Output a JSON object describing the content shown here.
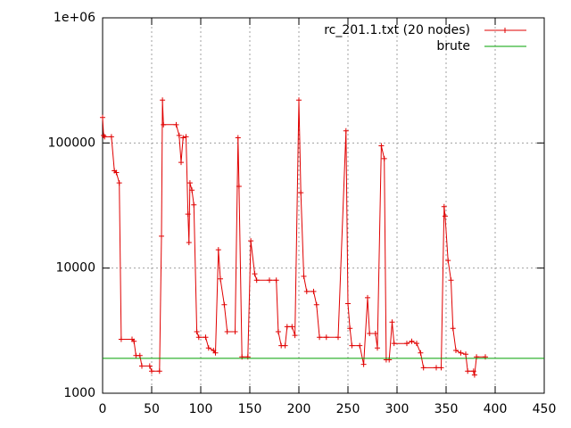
{
  "chart_data": {
    "type": "line",
    "log_y": true,
    "grid": true,
    "legend": "top-right",
    "xlim": [
      0,
      450
    ],
    "xticks": [
      0,
      50,
      100,
      150,
      200,
      250,
      300,
      350,
      400,
      450
    ],
    "ylim": [
      1000,
      1000000
    ],
    "yticks": [
      1000,
      10000,
      100000,
      {
        "value": 1000000,
        "label": "1e+06"
      }
    ],
    "series": [
      {
        "name": "rc_201.1.txt (20 nodes)",
        "color": "#e00000",
        "markers": true,
        "x": [
          0,
          1,
          2,
          9,
          12,
          14,
          17,
          19,
          30,
          32,
          34,
          38,
          40,
          48,
          50,
          58,
          60,
          61,
          62,
          75,
          78,
          80,
          82,
          85,
          87,
          88,
          89,
          91,
          93,
          96,
          98,
          105,
          108,
          113,
          115,
          118,
          120,
          124,
          127,
          135,
          138,
          139,
          142,
          148,
          151,
          155,
          157,
          170,
          177,
          179,
          182,
          186,
          188,
          193,
          196,
          200,
          202,
          205,
          208,
          215,
          218,
          221,
          228,
          240,
          248,
          250,
          252,
          254,
          262,
          266,
          270,
          272,
          278,
          280,
          284,
          287,
          289,
          292,
          295,
          297,
          310,
          315,
          320,
          324,
          327,
          340,
          345,
          348,
          349,
          352,
          355,
          357,
          360,
          365,
          370,
          372,
          378,
          379,
          381,
          390
        ],
        "values": [
          160000,
          115000,
          112000,
          112000,
          60000,
          58000,
          48000,
          2700,
          2700,
          2600,
          2000,
          2000,
          1650,
          1650,
          1500,
          1500,
          18000,
          220000,
          140000,
          140000,
          115000,
          70000,
          110000,
          112000,
          27000,
          16000,
          48000,
          42000,
          32000,
          3100,
          2800,
          2800,
          2300,
          2200,
          2100,
          14000,
          8200,
          5100,
          3100,
          3100,
          110000,
          45000,
          1950,
          1950,
          16500,
          9000,
          8000,
          8000,
          8000,
          3100,
          2400,
          2400,
          3400,
          3400,
          2900,
          220000,
          40000,
          8600,
          6500,
          6500,
          5100,
          2800,
          2800,
          2800,
          125000,
          5200,
          3300,
          2400,
          2400,
          1700,
          5800,
          3000,
          3000,
          2300,
          95000,
          75000,
          1850,
          1850,
          3700,
          2500,
          2500,
          2600,
          2500,
          2100,
          1600,
          1600,
          1600,
          31000,
          26000,
          11500,
          8000,
          3300,
          2200,
          2100,
          2050,
          1500,
          1500,
          1400,
          1950,
          1950
        ]
      },
      {
        "name": "brute",
        "color": "#00a000",
        "markers": false,
        "x": [
          0,
          450
        ],
        "values": [
          1900,
          1900
        ]
      }
    ]
  }
}
